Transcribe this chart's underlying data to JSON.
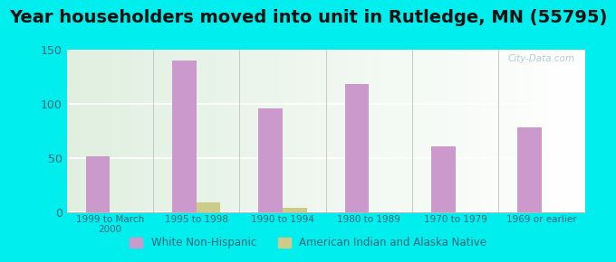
{
  "title": "Year householders moved into unit in Rutledge, MN (55795)",
  "categories": [
    "1999 to March\n2000",
    "1995 to 1998",
    "1990 to 1994",
    "1980 to 1989",
    "1970 to 1979",
    "1969 or earlier"
  ],
  "white_non_hispanic": [
    52,
    140,
    96,
    118,
    61,
    78
  ],
  "american_indian": [
    0,
    9,
    4,
    0,
    0,
    0
  ],
  "bar_color_white": "#cc99cc",
  "bar_color_indian": "#cccc88",
  "background_outer": "#00EEEE",
  "ylim": [
    0,
    150
  ],
  "yticks": [
    0,
    50,
    100,
    150
  ],
  "title_fontsize": 14,
  "watermark": "City-Data.com",
  "legend_white": "White Non-Hispanic",
  "legend_indian": "American Indian and Alaska Native",
  "tick_color": "#336677",
  "label_color": "#336677"
}
